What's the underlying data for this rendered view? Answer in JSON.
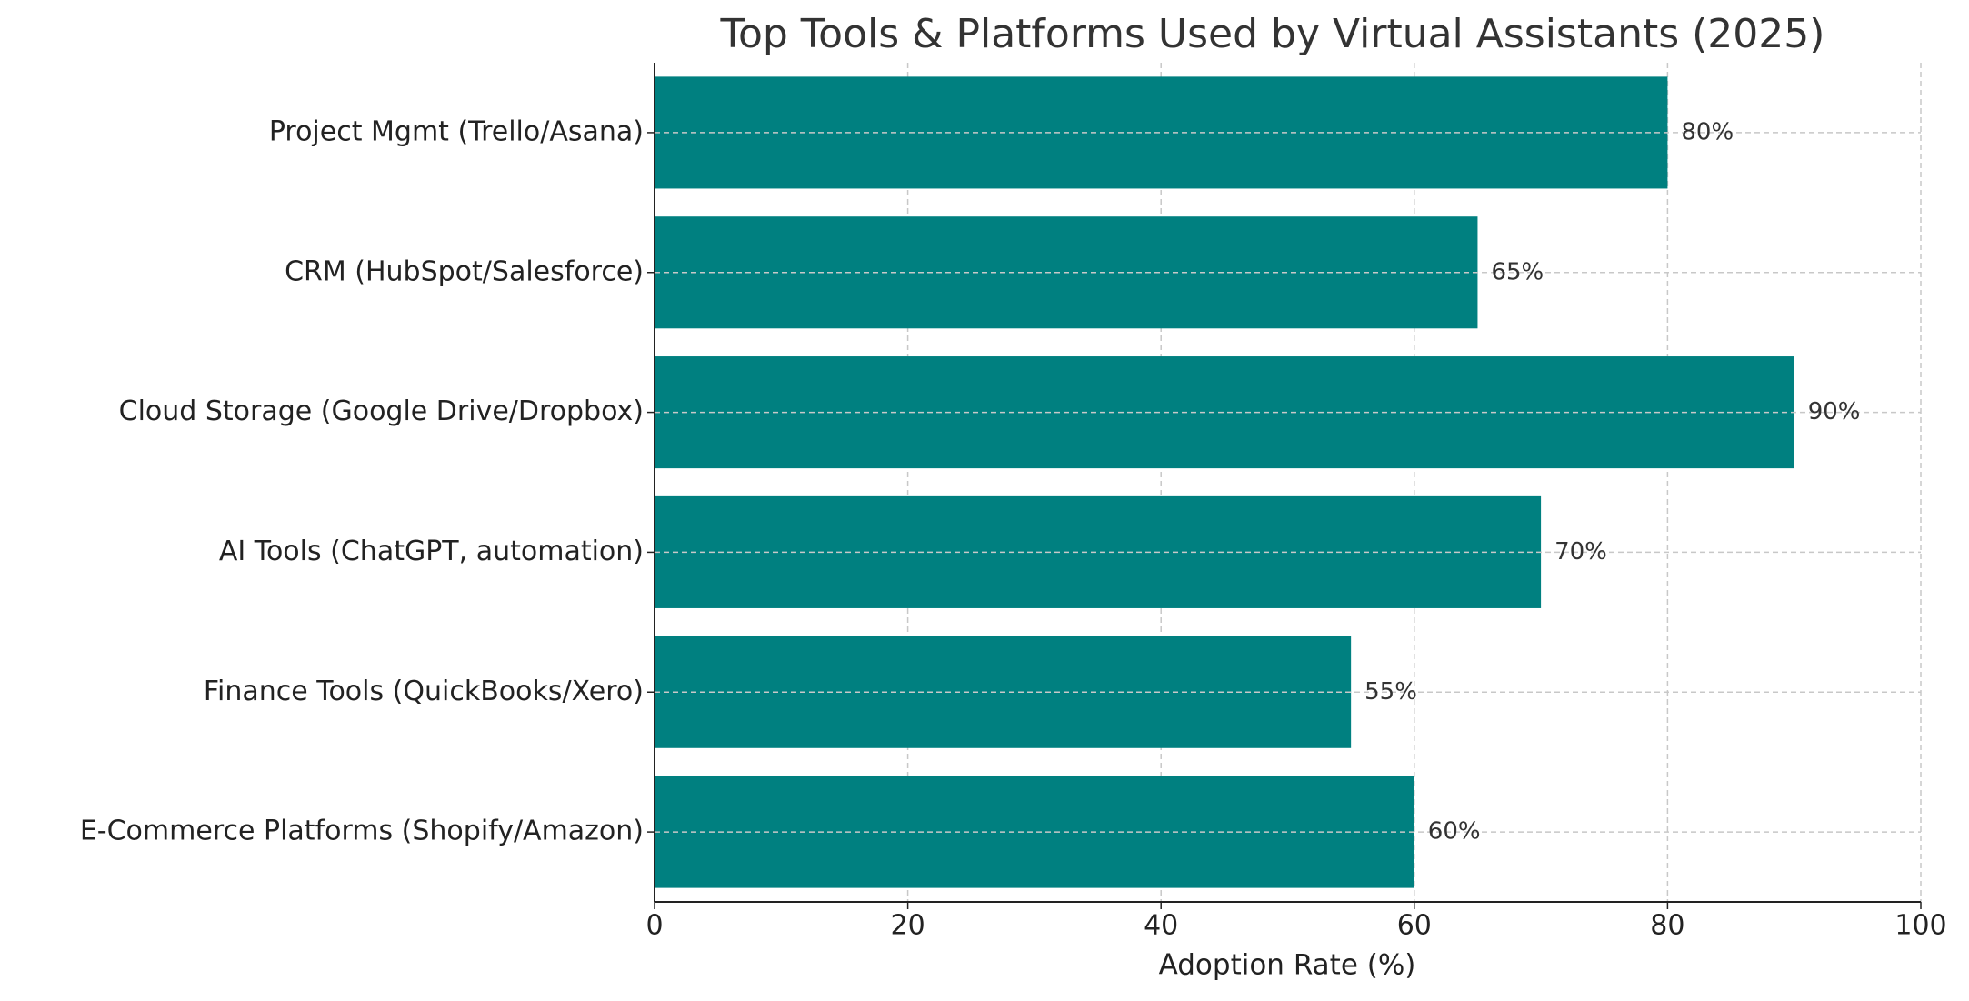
{
  "chart_data": {
    "type": "bar",
    "orientation": "horizontal",
    "title": "Top Tools & Platforms Used by Virtual Assistants (2025)",
    "x_label": "Adoption Rate (%)",
    "categories": [
      "Project Mgmt (Trello/Asana)",
      "CRM (HubSpot/Salesforce)",
      "Cloud Storage (Google Drive/Dropbox)",
      "AI Tools (ChatGPT, automation)",
      "Finance Tools (QuickBooks/Xero)",
      "E-Commerce Platforms (Shopify/Amazon)"
    ],
    "values": [
      80,
      65,
      90,
      70,
      55,
      60
    ],
    "value_labels": [
      "80%",
      "65%",
      "90%",
      "70%",
      "55%",
      "60%"
    ],
    "color": "#008080",
    "xlim": [
      0,
      100
    ],
    "xticks": [
      0,
      20,
      40,
      60,
      80,
      100
    ],
    "grid": true
  }
}
